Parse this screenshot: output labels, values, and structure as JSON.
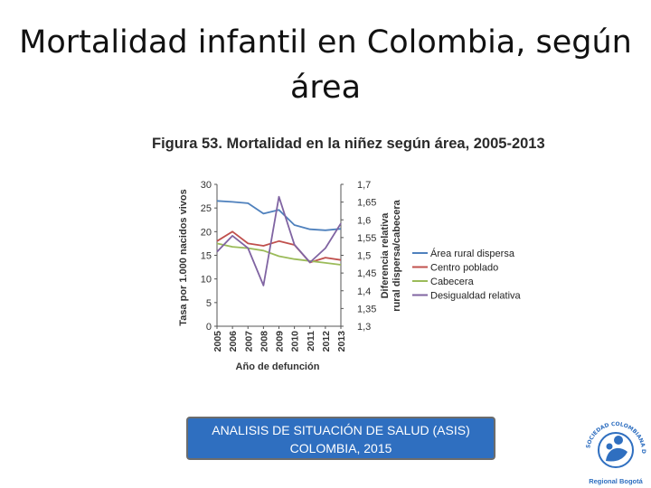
{
  "slide": {
    "title": "Mortalidad infantil en Colombia, según área"
  },
  "figure": {
    "caption": "Figura 53. Mortalidad en la niñez según área, 2005-2013"
  },
  "chart_data": {
    "type": "line",
    "title": "Figura 53. Mortalidad en la niñez según área, 2005-2013",
    "xlabel": "Año de defunción",
    "ylabel": "Tasa por 1.000 nacidos vivos",
    "y2label_line1": "Diferencia relativa",
    "y2label_line2": "rural dispersa/cabecera",
    "x": [
      "2005",
      "2006",
      "2007",
      "2008",
      "2009",
      "2010",
      "2011",
      "2012",
      "2013"
    ],
    "ylim": [
      0,
      30
    ],
    "yticks": [
      "0",
      "5",
      "10",
      "15",
      "20",
      "25",
      "30"
    ],
    "y2lim": [
      1.3,
      1.7
    ],
    "y2ticks": [
      "1,3",
      "1,35",
      "1,4",
      "1,45",
      "1,5",
      "1,55",
      "1,6",
      "1,65",
      "1,7"
    ],
    "series": [
      {
        "name": "Área rural dispersa",
        "axis": "left",
        "color": "#4f81bd",
        "values": [
          26.5,
          26.3,
          26.0,
          23.8,
          24.6,
          21.4,
          20.5,
          20.3,
          20.6
        ]
      },
      {
        "name": "Centro poblado",
        "axis": "left",
        "color": "#c0504d",
        "values": [
          18.0,
          20.0,
          17.5,
          17.0,
          18.0,
          17.2,
          13.5,
          14.5,
          14.0
        ]
      },
      {
        "name": "Cabecera",
        "axis": "left",
        "color": "#9bbb59",
        "values": [
          17.5,
          16.8,
          16.5,
          16.0,
          14.8,
          14.2,
          13.8,
          13.4,
          13.0
        ]
      },
      {
        "name": "Desigualdad relativa",
        "axis": "right",
        "color": "#8064a2",
        "values": [
          1.51,
          1.555,
          1.52,
          1.415,
          1.665,
          1.53,
          1.48,
          1.52,
          1.59
        ]
      }
    ]
  },
  "source": {
    "line1": "ANALISIS DE SITUACIÓN DE SALUD (ASIS)",
    "line2": "COLOMBIA, 2015"
  },
  "logo": {
    "arc_text": "SOCIEDAD COLOMBIANA DE PEDIATRIA",
    "caption": "Regional Bogotá"
  }
}
